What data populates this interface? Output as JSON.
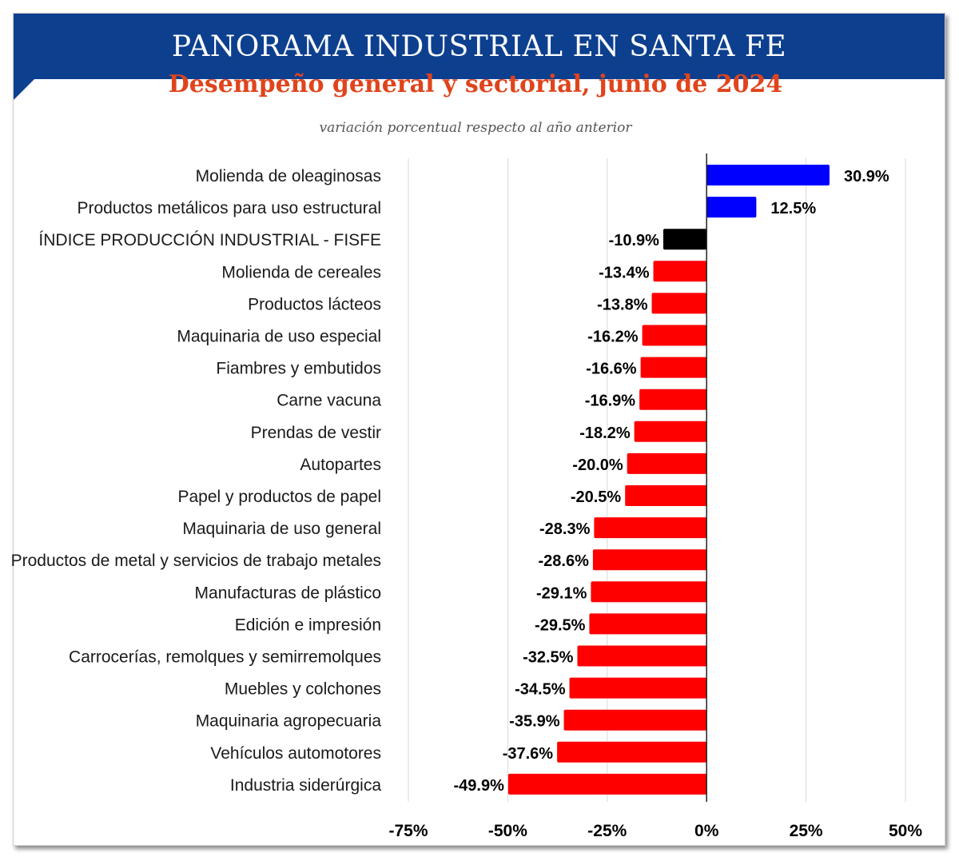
{
  "header": {
    "title": "PANORAMA INDUSTRIAL EN SANTA FE",
    "subtitle": "Desempeño general y sectorial, junio de 2024",
    "note": "variación porcentual respecto al año anterior"
  },
  "colors": {
    "banner": "#0d3f8f",
    "subtitle": "#e0441c",
    "positive": "#0000ff",
    "negative": "#ff0000",
    "index": "#000000"
  },
  "chart_data": {
    "type": "bar",
    "orientation": "horizontal",
    "categories": [
      "Molienda de oleaginosas",
      "Productos metálicos para uso estructural",
      "ÍNDICE PRODUCCIÓN INDUSTRIAL - FISFE",
      "Molienda de cereales",
      "Productos lácteos",
      "Maquinaria de uso especial",
      "Fiambres y embutidos",
      "Carne vacuna",
      "Prendas de vestir",
      "Autopartes",
      "Papel y productos de papel",
      "Maquinaria de uso general",
      "Productos de metal y servicios de trabajo metales",
      "Manufacturas de plástico",
      "Edición e impresión",
      "Carrocerías, remolques y semirremolques",
      "Muebles y colchones",
      "Maquinaria agropecuaria",
      "Vehículos automotores",
      "Industria siderúrgica"
    ],
    "values": [
      30.9,
      12.5,
      -10.9,
      -13.4,
      -13.8,
      -16.2,
      -16.6,
      -16.9,
      -18.2,
      -20.0,
      -20.5,
      -28.3,
      -28.6,
      -29.1,
      -29.5,
      -32.5,
      -34.5,
      -35.9,
      -37.6,
      -49.9
    ],
    "data_labels": [
      "30.9%",
      "12.5%",
      "-10.9%",
      "-13.4%",
      "-13.8%",
      "-16.2%",
      "-16.6%",
      "-16.9%",
      "-18.2%",
      "-20.0%",
      "-20.5%",
      "-28.3%",
      "-28.6%",
      "-29.1%",
      "-29.5%",
      "-32.5%",
      "-34.5%",
      "-35.9%",
      "-37.6%",
      "-49.9%"
    ],
    "bar_colors": [
      "#0000ff",
      "#0000ff",
      "#000000",
      "#ff0000",
      "#ff0000",
      "#ff0000",
      "#ff0000",
      "#ff0000",
      "#ff0000",
      "#ff0000",
      "#ff0000",
      "#ff0000",
      "#ff0000",
      "#ff0000",
      "#ff0000",
      "#ff0000",
      "#ff0000",
      "#ff0000",
      "#ff0000",
      "#ff0000"
    ],
    "xlim": [
      -75,
      50
    ],
    "xticks": [
      -75,
      -50,
      -25,
      0,
      25,
      50
    ],
    "xtick_labels": [
      "-75%",
      "-50%",
      "-25%",
      "0%",
      "25%",
      "50%"
    ],
    "grid": "vertical"
  }
}
